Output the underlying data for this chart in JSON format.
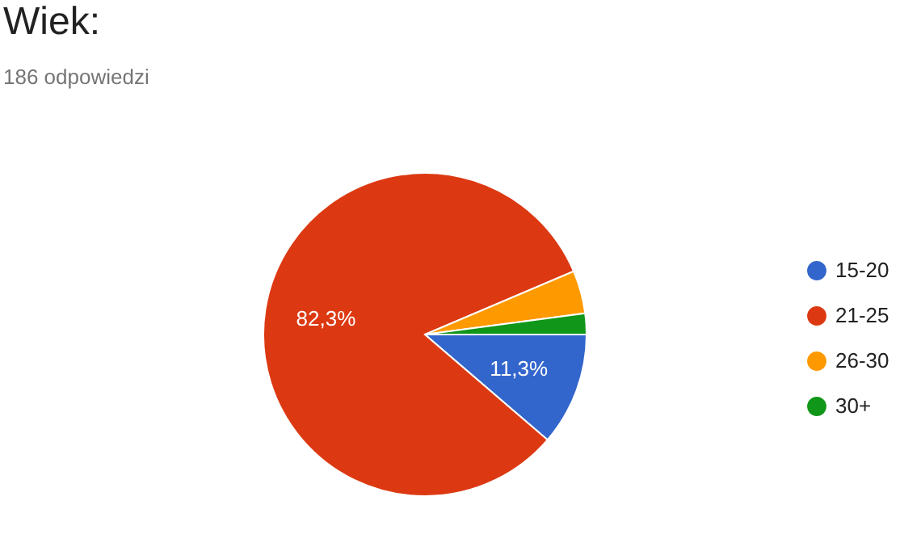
{
  "chart_data": {
    "type": "pie",
    "title": "Wiek:",
    "subtitle": "186 odpowiedzi",
    "categories": [
      "15-20",
      "21-25",
      "26-30",
      "30+"
    ],
    "values": [
      11.3,
      82.3,
      4.3,
      2.1
    ],
    "colors": [
      "#3366cc",
      "#dc3912",
      "#ff9900",
      "#109618"
    ],
    "value_labels": [
      "11,3%",
      "82,3%",
      null,
      null
    ],
    "legend": "right"
  }
}
